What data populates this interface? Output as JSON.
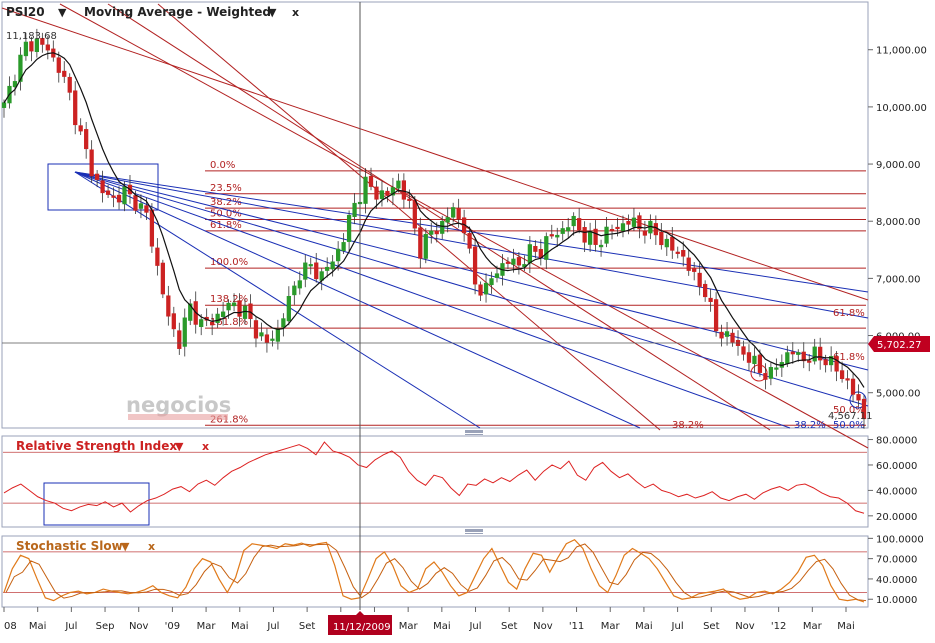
{
  "chart_data": [
    {
      "panel": "price",
      "type": "candlestick",
      "symbol": "PSI20",
      "indicator_label": "Moving Average - Weighted",
      "ylim": [
        4400,
        11800
      ],
      "y_ticks": [
        "11,000.00",
        "10,000.00",
        "9,000.00",
        "8,000.00",
        "7,000.00",
        "6,000.00",
        "5,000.00"
      ],
      "y_tick_values": [
        11000,
        10000,
        9000,
        8000,
        7000,
        6000,
        5000
      ],
      "high_label": "11,183.68",
      "last_value": 5702.27,
      "last_value_label": "5,702.27",
      "last_low_label": "4,567.11",
      "watermark": "negocios",
      "close_path": [
        [
          0,
          10000
        ],
        [
          2,
          10600
        ],
        [
          4,
          11050
        ],
        [
          6,
          11150
        ],
        [
          8,
          11000
        ],
        [
          10,
          10700
        ],
        [
          12,
          10200
        ],
        [
          14,
          9500
        ],
        [
          16,
          8900
        ],
        [
          18,
          8500
        ],
        [
          20,
          8400
        ],
        [
          22,
          8500
        ],
        [
          24,
          8350
        ],
        [
          26,
          8100
        ],
        [
          28,
          7200
        ],
        [
          30,
          6300
        ],
        [
          32,
          5900
        ],
        [
          34,
          6500
        ],
        [
          36,
          6200
        ],
        [
          38,
          6250
        ],
        [
          40,
          6450
        ],
        [
          42,
          6550
        ],
        [
          44,
          6400
        ],
        [
          46,
          6100
        ],
        [
          48,
          5850
        ],
        [
          50,
          6100
        ],
        [
          52,
          6600
        ],
        [
          54,
          7100
        ],
        [
          56,
          7200
        ],
        [
          58,
          7050
        ],
        [
          60,
          7300
        ],
        [
          62,
          7700
        ],
        [
          64,
          8300
        ],
        [
          66,
          8650
        ],
        [
          68,
          8500
        ],
        [
          70,
          8450
        ],
        [
          72,
          8700
        ],
        [
          74,
          8250
        ],
        [
          76,
          7500
        ],
        [
          78,
          7800
        ],
        [
          80,
          7950
        ],
        [
          82,
          8200
        ],
        [
          84,
          7900
        ],
        [
          86,
          6900
        ],
        [
          88,
          6800
        ],
        [
          90,
          7150
        ],
        [
          92,
          7300
        ],
        [
          94,
          7250
        ],
        [
          96,
          7450
        ],
        [
          98,
          7500
        ],
        [
          100,
          7750
        ],
        [
          102,
          7850
        ],
        [
          104,
          8000
        ],
        [
          106,
          7750
        ],
        [
          108,
          7600
        ],
        [
          110,
          7800
        ],
        [
          112,
          7900
        ],
        [
          114,
          8000
        ],
        [
          116,
          7900
        ],
        [
          118,
          7850
        ],
        [
          120,
          7700
        ],
        [
          122,
          7500
        ],
        [
          124,
          7400
        ],
        [
          126,
          7000
        ],
        [
          128,
          6800
        ],
        [
          130,
          6100
        ],
        [
          132,
          6000
        ],
        [
          134,
          5800
        ],
        [
          136,
          5600
        ],
        [
          138,
          5400
        ],
        [
          140,
          5300
        ],
        [
          142,
          5600
        ],
        [
          144,
          5700
        ],
        [
          146,
          5600
        ],
        [
          148,
          5650
        ],
        [
          150,
          5600
        ],
        [
          152,
          5400
        ],
        [
          154,
          5200
        ],
        [
          156,
          4800
        ],
        [
          157,
          4600
        ]
      ],
      "fib_levels": [
        {
          "label": "0.0%",
          "value": 8880
        },
        {
          "label": "23.5%",
          "value": 8480
        },
        {
          "label": "38.2%",
          "value": 8230
        },
        {
          "label": "50.0%",
          "value": 8030
        },
        {
          "label": "61.8%",
          "value": 7830
        },
        {
          "label": "100.0%",
          "value": 7180
        },
        {
          "label": "138.2%",
          "value": 6530
        },
        {
          "label": "161.8%",
          "value": 6130
        },
        {
          "label": "261.8%",
          "value": 4430
        }
      ],
      "fan_labels": [
        "61.8%",
        "61.8%",
        "50.0%",
        "38.2%",
        "38.2%",
        "50.0%"
      ],
      "x_ticks": [
        "08",
        "Mai",
        "Jul",
        "Sep",
        "Nov",
        "'09",
        "Mar",
        "Mai",
        "Jul",
        "Set",
        "Nov",
        "Jan",
        "Mar",
        "Mai",
        "Jul",
        "Set",
        "Nov",
        "'11",
        "Mar",
        "Mai",
        "Jul",
        "Set",
        "Nov",
        "'12",
        "Mar",
        "Mai"
      ],
      "cursor_date": "11/12/2009"
    },
    {
      "panel": "rsi",
      "type": "line",
      "title": "Relative Strength Index",
      "ylim": [
        12,
        82
      ],
      "y_ticks": [
        "80.0000",
        "60.0000",
        "40.0000",
        "20.0000"
      ],
      "y_tick_values": [
        80,
        60,
        40,
        20
      ],
      "levels": [
        70,
        30
      ],
      "values": [
        38,
        42,
        45,
        40,
        35,
        32,
        30,
        26,
        24,
        27,
        29,
        28,
        31,
        27,
        30,
        23,
        28,
        32,
        34,
        37,
        41,
        43,
        39,
        45,
        48,
        44,
        50,
        55,
        58,
        62,
        65,
        68,
        70,
        72,
        74,
        76,
        73,
        68,
        78,
        71,
        69,
        66,
        60,
        58,
        64,
        68,
        71,
        66,
        55,
        48,
        44,
        52,
        50,
        42,
        36,
        45,
        44,
        49,
        46,
        50,
        47,
        52,
        56,
        48,
        55,
        60,
        57,
        63,
        52,
        48,
        58,
        62,
        55,
        50,
        53,
        47,
        42,
        45,
        40,
        38,
        35,
        37,
        34,
        36,
        39,
        34,
        32,
        35,
        37,
        33,
        38,
        41,
        43,
        40,
        44,
        45,
        42,
        38,
        35,
        34,
        30,
        24,
        22
      ]
    },
    {
      "panel": "stochastic",
      "type": "line",
      "title": "Stochastic Slow",
      "ylim": [
        0,
        102
      ],
      "y_ticks": [
        "100.0000",
        "70.0000",
        "40.0000",
        "10.0000"
      ],
      "y_tick_values": [
        100,
        70,
        40,
        10
      ],
      "levels": [
        80,
        20
      ],
      "values": [
        20,
        55,
        75,
        70,
        40,
        12,
        8,
        15,
        20,
        22,
        18,
        20,
        25,
        22,
        20,
        18,
        20,
        24,
        30,
        20,
        15,
        12,
        28,
        55,
        70,
        65,
        40,
        20,
        42,
        82,
        92,
        90,
        88,
        85,
        92,
        90,
        93,
        88,
        92,
        94,
        60,
        15,
        10,
        12,
        40,
        70,
        80,
        60,
        30,
        20,
        25,
        55,
        65,
        50,
        30,
        15,
        20,
        45,
        70,
        85,
        60,
        35,
        25,
        55,
        78,
        75,
        50,
        72,
        92,
        98,
        85,
        55,
        30,
        20,
        45,
        75,
        85,
        78,
        70,
        55,
        35,
        15,
        10,
        12,
        18,
        20,
        22,
        25,
        15,
        10,
        12,
        20,
        22,
        18,
        25,
        35,
        50,
        72,
        75,
        60,
        30,
        10,
        8,
        10,
        6
      ]
    }
  ],
  "header": {
    "symbol": "PSI20",
    "indicator": "Moving Average - Weighted",
    "close": "x"
  },
  "rsi_header": {
    "title": "Relative Strength Index",
    "close": "x"
  },
  "stoch_header": {
    "title": "Stochastic Slow",
    "close": "x"
  },
  "colors": {
    "up": "#2a9a2a",
    "down": "#cc2222",
    "ma": "#111111",
    "fib": "#b22222",
    "fan": "#1a2fb5",
    "rsi": "#dd2222",
    "stoch": "#e07a1a",
    "last_badge": "#c00020"
  }
}
